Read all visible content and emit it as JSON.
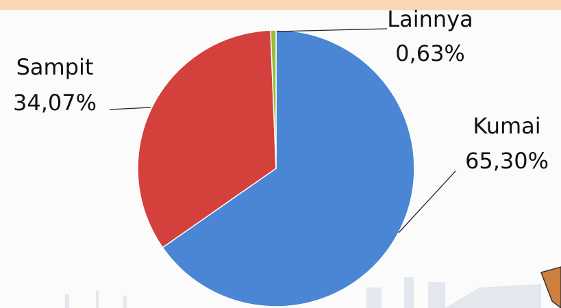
{
  "chart_data": {
    "type": "pie",
    "categories": [
      "Kumai",
      "Sampit",
      "Lainnya"
    ],
    "values": [
      65.3,
      34.07,
      0.63
    ],
    "value_labels": [
      "65,30%",
      "34,07%",
      "0,63%"
    ],
    "colors": [
      "#4a86d4",
      "#d4403b",
      "#9bbb3b"
    ]
  }
}
